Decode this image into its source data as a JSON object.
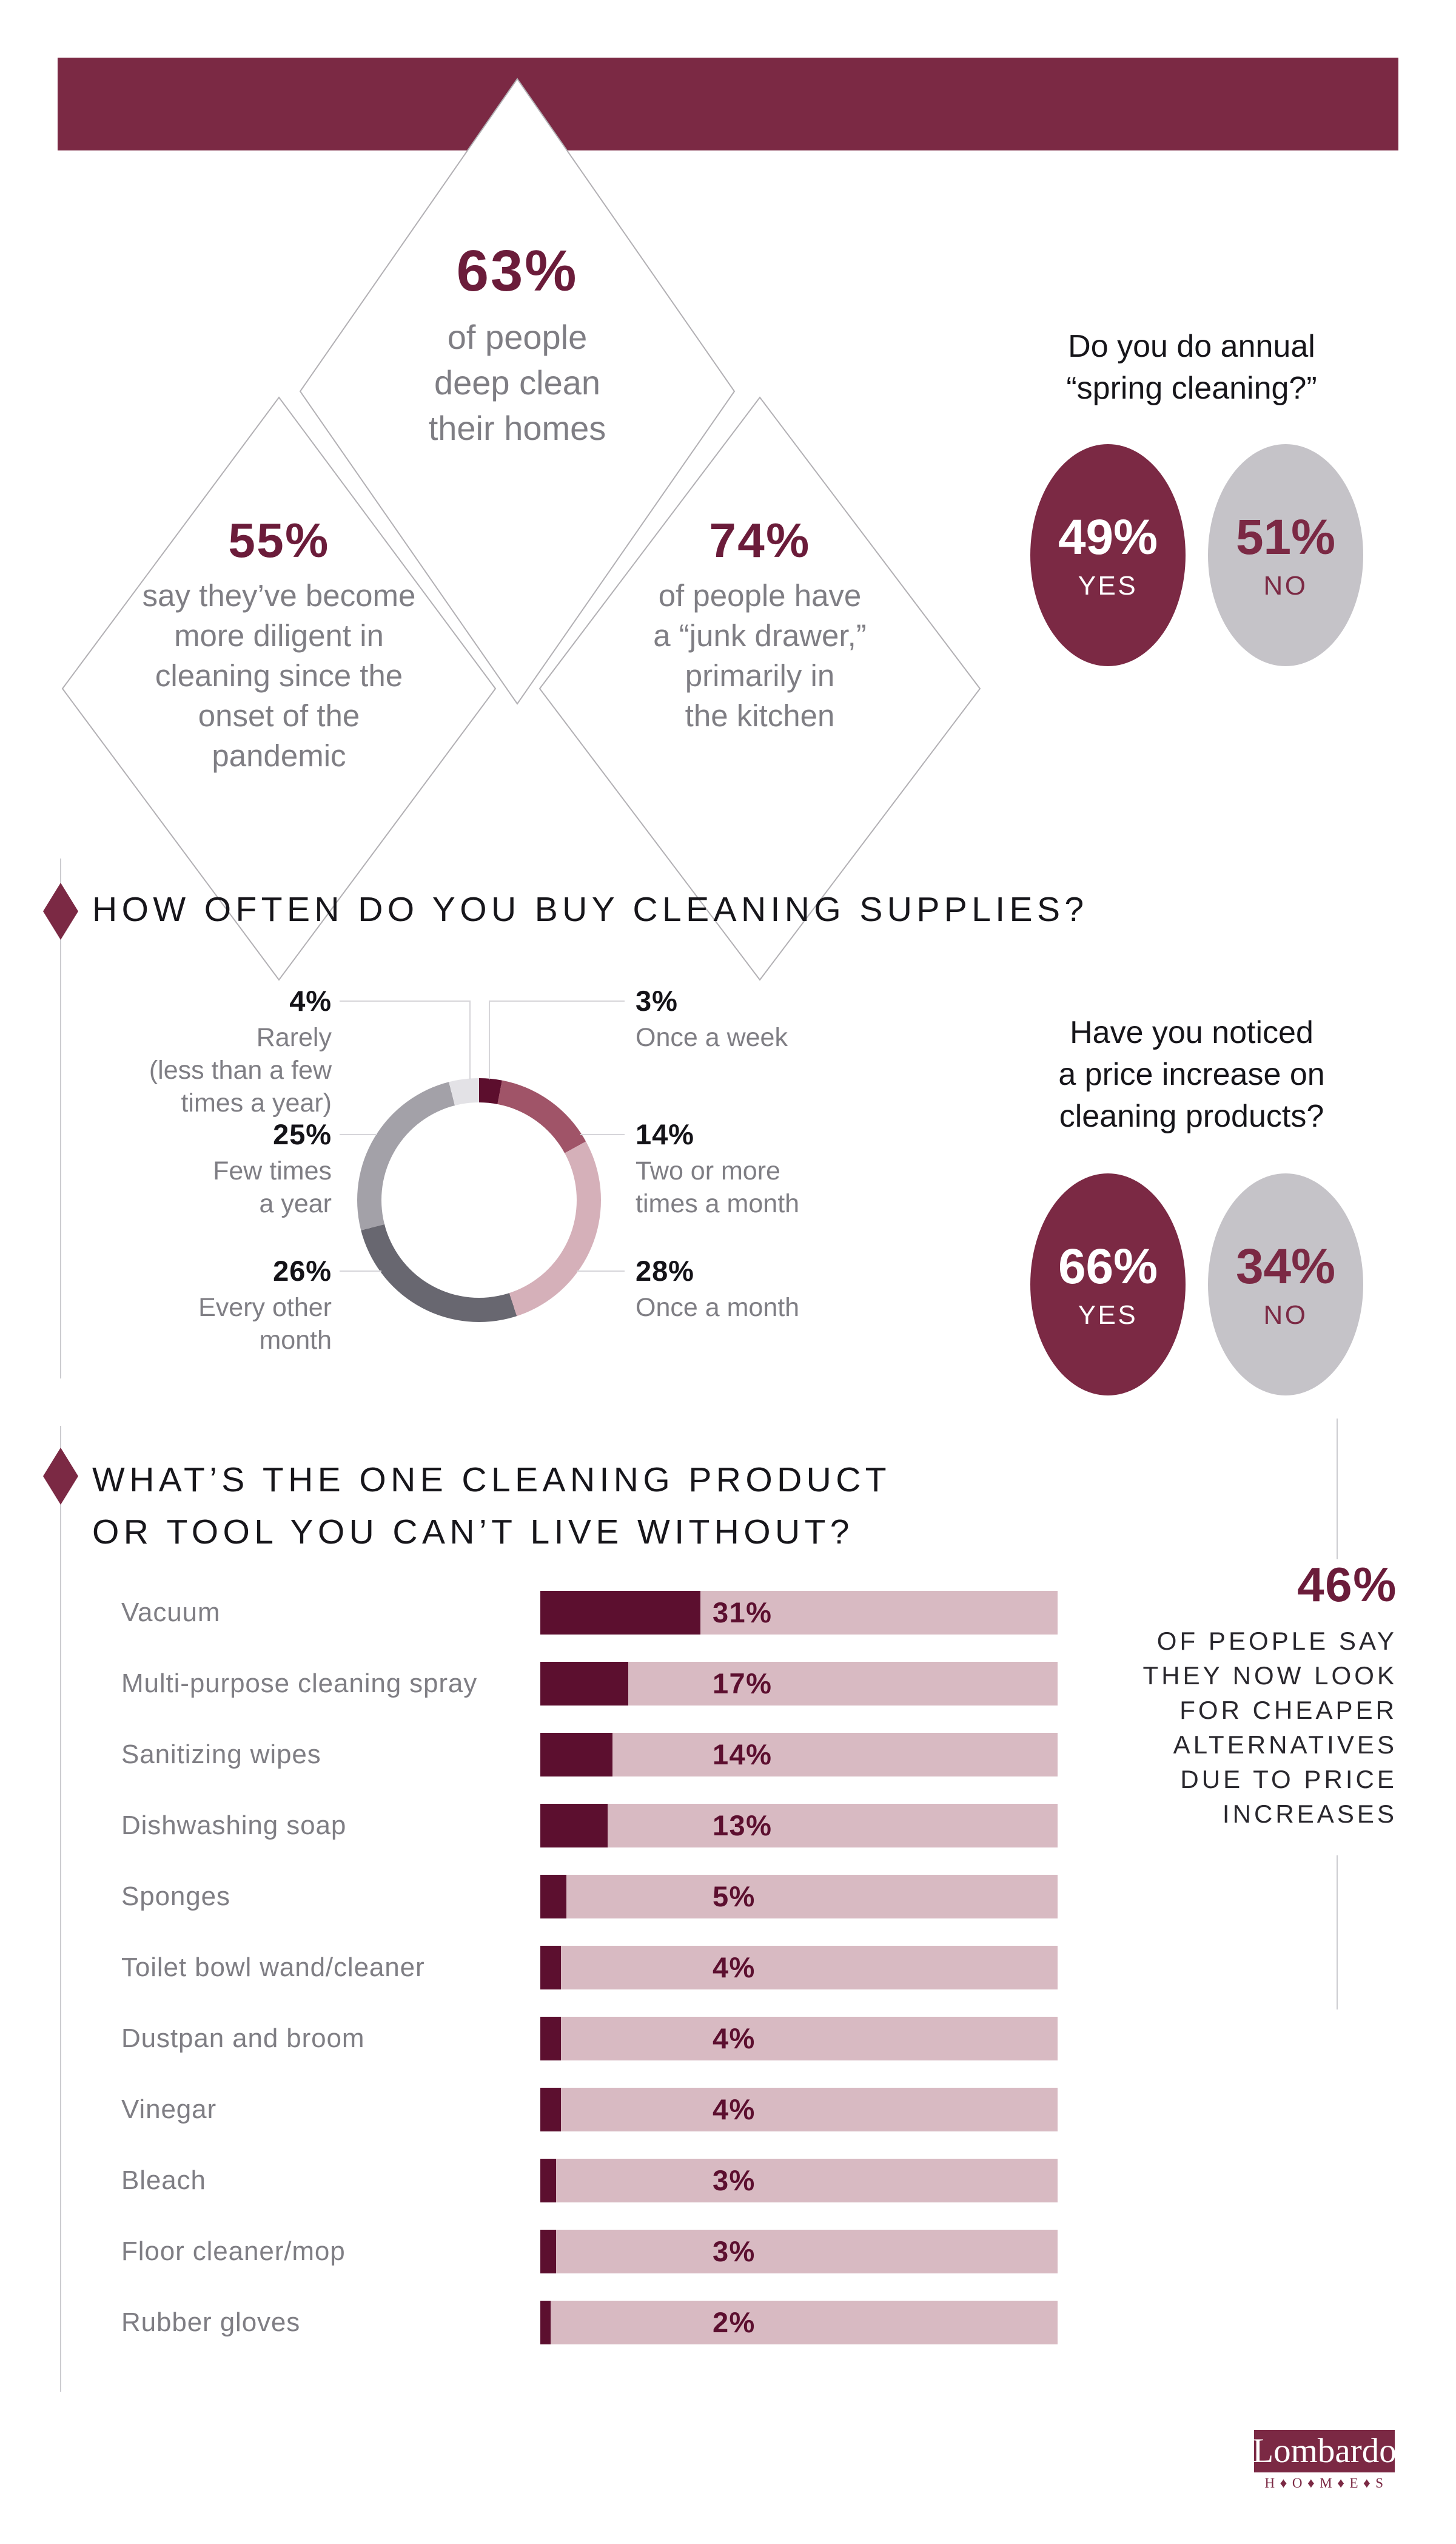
{
  "colors": {
    "maroon": "#7b2944",
    "dark_wine": "#5c0f2f",
    "number_wine": "#6b1c3a",
    "rose": "#a05468",
    "pink": "#d5b0b9",
    "track_pink": "#d8bac2",
    "dark_gray": "#686770",
    "mid_gray": "#a3a1a8",
    "light_gray": "#e3e2e6",
    "circle_gray": "#c5c3c8",
    "text_gray": "#7f7e84",
    "line_gray": "#ccccd0"
  },
  "top": {
    "diamond_63": {
      "value": "63%",
      "lines": [
        "of people",
        "deep clean",
        "their homes"
      ]
    },
    "diamond_55": {
      "value": "55%",
      "lines": [
        "say they’ve become",
        "more diligent in",
        "cleaning since the",
        "onset of the",
        "pandemic"
      ]
    },
    "diamond_74": {
      "value": "74%",
      "lines": [
        "of people have",
        "a “junk drawer,”",
        "primarily in",
        "the kitchen"
      ]
    },
    "poll": {
      "question_lines": [
        "Do you do annual",
        "“spring cleaning?”"
      ],
      "yes_value": "49%",
      "yes_label": "YES",
      "no_value": "51%",
      "no_label": "NO"
    }
  },
  "supplies": {
    "heading": "HOW OFTEN DO YOU BUY CLEANING SUPPLIES?",
    "donut_segments": [
      {
        "label": "Once a week",
        "value": 3,
        "color": "#5c0e2d"
      },
      {
        "label": "Two or more times a month",
        "value": 14,
        "color": "#a05468"
      },
      {
        "label": "Once a month",
        "value": 28,
        "color": "#d5b0b9"
      },
      {
        "label": "Every other month",
        "value": 26,
        "color": "#686770"
      },
      {
        "label": "Few times a year",
        "value": 25,
        "color": "#a3a1a8"
      },
      {
        "label": "Rarely (less than a few times a year)",
        "value": 4,
        "color": "#e3e2e6"
      }
    ],
    "callouts": {
      "rarely": {
        "pct": "4%",
        "lines": [
          "Rarely",
          "(less than a few",
          "times a year)"
        ]
      },
      "once_week": {
        "pct": "3%",
        "line": "Once a week"
      },
      "few_times_year": {
        "pct": "25%",
        "lines": [
          "Few times",
          "a year"
        ]
      },
      "two_or_more": {
        "pct": "14%",
        "lines": [
          "Two or more",
          "times a month"
        ]
      },
      "every_other": {
        "pct": "26%",
        "lines": [
          "Every other",
          "month"
        ]
      },
      "once_month": {
        "pct": "28%",
        "line": "Once a month"
      }
    },
    "poll": {
      "question_lines": [
        "Have you noticed",
        "a price increase on",
        "cleaning products?"
      ],
      "yes_value": "66%",
      "yes_label": "YES",
      "no_value": "34%",
      "no_label": "NO"
    }
  },
  "products": {
    "heading_lines": [
      "WHAT’S THE ONE CLEANING PRODUCT",
      "OR TOOL YOU CAN’T LIVE WITHOUT?"
    ],
    "bars": [
      {
        "label": "Vacuum",
        "pct": "31%",
        "value": 31
      },
      {
        "label": "Multi-purpose cleaning spray",
        "pct": "17%",
        "value": 17
      },
      {
        "label": "Sanitizing wipes",
        "pct": "14%",
        "value": 14
      },
      {
        "label": "Dishwashing soap",
        "pct": "13%",
        "value": 13
      },
      {
        "label": "Sponges",
        "pct": "5%",
        "value": 5
      },
      {
        "label": "Toilet bowl wand/cleaner",
        "pct": "4%",
        "value": 4
      },
      {
        "label": "Dustpan and broom",
        "pct": "4%",
        "value": 4
      },
      {
        "label": "Vinegar",
        "pct": "4%",
        "value": 4
      },
      {
        "label": "Bleach",
        "pct": "3%",
        "value": 3
      },
      {
        "label": "Floor cleaner/mop",
        "pct": "3%",
        "value": 3
      },
      {
        "label": "Rubber gloves",
        "pct": "2%",
        "value": 2
      }
    ],
    "callout": {
      "value": "46%",
      "lines": [
        "OF PEOPLE SAY",
        "THEY NOW LOOK",
        "FOR CHEAPER",
        "ALTERNATIVES",
        "DUE TO PRICE",
        "INCREASES"
      ]
    }
  },
  "logo": {
    "name": "Lombardo",
    "sub": "H ♦ O ♦ M ♦ E ♦ S"
  },
  "chart_data": [
    {
      "type": "pie",
      "subtype": "donut",
      "title": "HOW OFTEN DO YOU BUY CLEANING SUPPLIES?",
      "labels": [
        "Once a week",
        "Two or more times a month",
        "Once a month",
        "Every other month",
        "Few times a year",
        "Rarely (less than a few times a year)"
      ],
      "values": [
        3,
        14,
        28,
        26,
        25,
        4
      ],
      "colors": [
        "#5c0e2d",
        "#a05468",
        "#d5b0b9",
        "#686770",
        "#a3a1a8",
        "#e3e2e6"
      ],
      "start_angle": "12 o'clock, clockwise",
      "legend_position": "callout labels left and right of donut"
    },
    {
      "type": "bar",
      "orientation": "horizontal",
      "title": "WHAT’S THE ONE CLEANING PRODUCT OR TOOL YOU CAN’T LIVE WITHOUT?",
      "categories": [
        "Vacuum",
        "Multi-purpose cleaning spray",
        "Sanitizing wipes",
        "Dishwashing soap",
        "Sponges",
        "Toilet bowl wand/cleaner",
        "Dustpan and broom",
        "Vinegar",
        "Bleach",
        "Floor cleaner/mop",
        "Rubber gloves"
      ],
      "values": [
        31,
        17,
        14,
        13,
        5,
        4,
        4,
        4,
        3,
        3,
        2
      ],
      "xlim": [
        0,
        100
      ],
      "grid": false,
      "bar_color": "#5c0f2f",
      "track_color": "#d8bac2",
      "value_labels": [
        "31%",
        "17%",
        "14%",
        "13%",
        "5%",
        "4%",
        "4%",
        "4%",
        "3%",
        "3%",
        "2%"
      ]
    },
    {
      "type": "pie",
      "title": "Do you do annual “spring cleaning?”",
      "labels": [
        "YES",
        "NO"
      ],
      "values": [
        49,
        51
      ],
      "colors": [
        "#7b2944",
        "#c5c3c8"
      ]
    },
    {
      "type": "pie",
      "title": "Have you noticed a price increase on cleaning products?",
      "labels": [
        "YES",
        "NO"
      ],
      "values": [
        66,
        34
      ],
      "colors": [
        "#7b2944",
        "#c5c3c8"
      ]
    },
    {
      "type": "table",
      "title": "standalone stats",
      "categories": [
        "deep clean their homes",
        "more diligent in cleaning since onset of pandemic",
        "have a junk drawer primarily in the kitchen",
        "now look for cheaper alternatives due to price increases"
      ],
      "values": [
        63,
        55,
        74,
        46
      ]
    }
  ]
}
